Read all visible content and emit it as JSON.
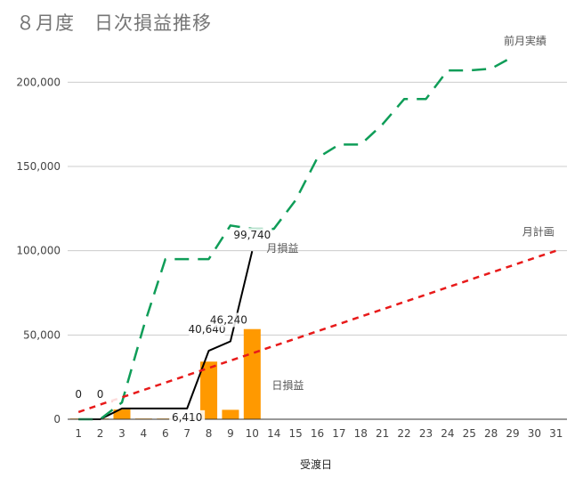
{
  "title": "８月度　日次損益推移",
  "chart_data": {
    "type": "bar",
    "title": "８月度　日次損益推移",
    "xlabel": "受渡日",
    "ylabel": "",
    "ylim": [
      0,
      225000
    ],
    "y_ticks": [
      0,
      50000,
      100000,
      150000,
      200000
    ],
    "y_tick_labels": [
      "0",
      "50,000",
      "100,000",
      "150,000",
      "200,000"
    ],
    "grid": true,
    "categories": [
      "1",
      "2",
      "3",
      "4",
      "6",
      "7",
      "8",
      "9",
      "10",
      "14",
      "15",
      "16",
      "17",
      "18",
      "21",
      "22",
      "23",
      "24",
      "25",
      "28",
      "29",
      "30",
      "31"
    ],
    "series": [
      {
        "name": "日損益",
        "type": "bar",
        "color": "#ff9900",
        "values": [
          0,
          0,
          5800,
          400,
          300,
          300,
          34200,
          5600,
          53500,
          null,
          null,
          null,
          null,
          null,
          null,
          null,
          null,
          null,
          null,
          null,
          null,
          null,
          null
        ]
      },
      {
        "name": "月損益",
        "type": "line",
        "color": "#000000",
        "values": [
          0,
          0,
          6410,
          6410,
          6410,
          6410,
          40640,
          46240,
          99740,
          null,
          null,
          null,
          null,
          null,
          null,
          null,
          null,
          null,
          null,
          null,
          null,
          null,
          null
        ]
      },
      {
        "name": "前月実績",
        "type": "line",
        "style": "dashed",
        "color": "#0f9d58",
        "values": [
          0,
          0,
          10000,
          55000,
          95000,
          95000,
          95000,
          115000,
          113000,
          113000,
          130000,
          155000,
          163000,
          163000,
          175000,
          190000,
          190000,
          207000,
          207000,
          208000,
          215000,
          null,
          null
        ]
      },
      {
        "name": "月計画",
        "type": "line",
        "style": "dashed",
        "color": "#e81a1a",
        "values": [
          4300,
          8700,
          13000,
          17400,
          21700,
          26100,
          30400,
          34800,
          39100,
          43500,
          47800,
          52200,
          56500,
          60900,
          65200,
          69600,
          73900,
          78300,
          82600,
          87000,
          91300,
          95700,
          100000
        ]
      }
    ],
    "data_labels": [
      {
        "category_index": 0,
        "text": "0"
      },
      {
        "category_index": 1,
        "text": "0"
      },
      {
        "category_index": 5,
        "text": "6,410"
      },
      {
        "category_index": 6,
        "text": "40,640"
      },
      {
        "category_index": 7,
        "text": "46,240"
      },
      {
        "category_index": 8,
        "text": "99,740"
      }
    ]
  }
}
